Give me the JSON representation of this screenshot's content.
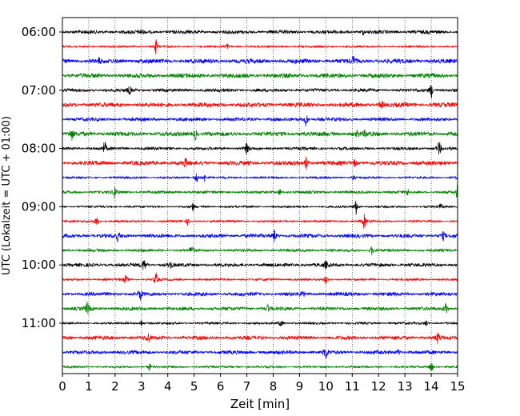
{
  "chart_data": {
    "type": "line",
    "title": "",
    "xlabel": "Zeit  [min]",
    "ylabel": "UTC (Lokalzeit = UTC + 01:00)",
    "xlim": [
      0,
      15
    ],
    "x_ticks": [
      "0",
      "1",
      "2",
      "3",
      "4",
      "5",
      "6",
      "7",
      "8",
      "9",
      "10",
      "11",
      "12",
      "13",
      "14",
      "15"
    ],
    "y_tick_labels": [
      "06:00",
      "07:00",
      "08:00",
      "09:00",
      "10:00",
      "11:00"
    ],
    "grid": "vertical dotted",
    "trace_colors": [
      "#000000",
      "#ff0000",
      "#0000ff",
      "#008000"
    ],
    "series": [
      {
        "row_time": "06:00",
        "spikes": [
          [
            3.0,
            0.3
          ],
          [
            11.4,
            0.3
          ]
        ]
      },
      {
        "row_time": "06:15",
        "spikes": [
          [
            3.55,
            1.0
          ],
          [
            6.25,
            0.4
          ]
        ]
      },
      {
        "row_time": "06:30",
        "spikes": [
          [
            1.4,
            0.3
          ],
          [
            11.05,
            0.6
          ]
        ]
      },
      {
        "row_time": "06:45",
        "spikes": []
      },
      {
        "row_time": "07:00",
        "spikes": [
          [
            2.55,
            0.6
          ],
          [
            14.0,
            1.0
          ]
        ]
      },
      {
        "row_time": "07:15",
        "spikes": [
          [
            12.1,
            0.7
          ]
        ]
      },
      {
        "row_time": "07:30",
        "spikes": [
          [
            9.25,
            1.0
          ]
        ]
      },
      {
        "row_time": "07:45",
        "spikes": [
          [
            0.35,
            0.7
          ],
          [
            5.05,
            0.8
          ],
          [
            11.2,
            0.4
          ],
          [
            11.5,
            0.4
          ]
        ]
      },
      {
        "row_time": "08:00",
        "spikes": [
          [
            1.6,
            1.0
          ],
          [
            7.0,
            0.8
          ],
          [
            14.3,
            1.0
          ]
        ]
      },
      {
        "row_time": "08:15",
        "spikes": [
          [
            4.65,
            0.6
          ],
          [
            9.25,
            1.0
          ],
          [
            11.1,
            0.5
          ]
        ]
      },
      {
        "row_time": "08:30",
        "spikes": [
          [
            5.1,
            0.9
          ],
          [
            5.4,
            0.5
          ],
          [
            11.05,
            0.4
          ],
          [
            15.0,
            0.4
          ]
        ]
      },
      {
        "row_time": "08:45",
        "spikes": [
          [
            2.0,
            1.0
          ],
          [
            8.25,
            0.5
          ],
          [
            13.1,
            0.4
          ],
          [
            15.0,
            1.0
          ]
        ]
      },
      {
        "row_time": "09:00",
        "spikes": [
          [
            4.95,
            0.5
          ],
          [
            11.15,
            1.0
          ],
          [
            14.35,
            0.4
          ]
        ]
      },
      {
        "row_time": "09:15",
        "spikes": [
          [
            1.3,
            0.7
          ],
          [
            4.75,
            0.4
          ],
          [
            11.45,
            1.0
          ]
        ]
      },
      {
        "row_time": "09:30",
        "spikes": [
          [
            2.1,
            0.6
          ],
          [
            8.05,
            0.8
          ],
          [
            14.45,
            0.5
          ]
        ]
      },
      {
        "row_time": "09:45",
        "spikes": [
          [
            4.9,
            0.9
          ],
          [
            11.75,
            0.6
          ]
        ]
      },
      {
        "row_time": "10:00",
        "spikes": [
          [
            3.1,
            1.0
          ],
          [
            4.1,
            0.5
          ],
          [
            10.0,
            0.5
          ]
        ]
      },
      {
        "row_time": "10:15",
        "spikes": [
          [
            2.4,
            0.6
          ],
          [
            3.55,
            0.9
          ],
          [
            10.0,
            0.6
          ]
        ]
      },
      {
        "row_time": "10:30",
        "spikes": [
          [
            2.95,
            0.9
          ],
          [
            9.1,
            0.4
          ]
        ]
      },
      {
        "row_time": "10:45",
        "spikes": [
          [
            0.95,
            0.9
          ],
          [
            7.8,
            0.4
          ],
          [
            14.55,
            1.0
          ]
        ]
      },
      {
        "row_time": "11:00",
        "spikes": [
          [
            3.0,
            0.5
          ],
          [
            8.3,
            0.6
          ],
          [
            13.8,
            0.4
          ]
        ]
      },
      {
        "row_time": "11:15",
        "spikes": [
          [
            3.25,
            0.7
          ],
          [
            14.25,
            0.7
          ]
        ]
      },
      {
        "row_time": "11:30",
        "spikes": [
          [
            10.0,
            0.9
          ],
          [
            12.75,
            0.4
          ]
        ]
      },
      {
        "row_time": "11:45",
        "spikes": [
          [
            3.3,
            0.6
          ],
          [
            14.0,
            0.8
          ]
        ]
      }
    ]
  }
}
